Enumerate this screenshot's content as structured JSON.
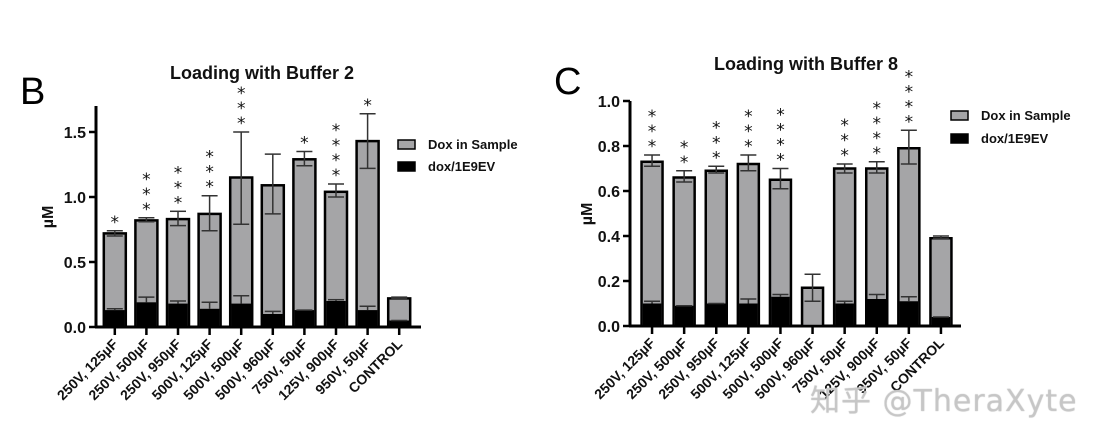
{
  "watermark": "知乎 @TheraXyte",
  "colors": {
    "gray_bar": "#a5a5a7",
    "black_bar": "#000000",
    "axis": "#000000"
  },
  "chart_data": [
    {
      "panel_letter": "B",
      "type": "bar",
      "stacked": "overlay",
      "title": "Loading with Buffer 2",
      "xlabel": "",
      "ylabel": "µM",
      "ylim": [
        0,
        1.7
      ],
      "yticks": [
        0.0,
        0.5,
        1.0,
        1.5
      ],
      "ytick_labels": [
        "0.0",
        "0.5",
        "1.0",
        "1.5"
      ],
      "legend": {
        "placement": "top-right",
        "entries": [
          "Dox in Sample",
          "dox/1E9EV"
        ]
      },
      "categories": [
        "250V, 125µF",
        "250V, 500µF",
        "250V, 950µF",
        "500V, 125µF",
        "500V, 500µF",
        "500V, 960µF",
        "750V, 50µF",
        "125V, 900µF",
        "950V, 50µF",
        "CONTROL"
      ],
      "series": [
        {
          "name": "Dox in Sample",
          "values": [
            0.72,
            0.82,
            0.83,
            0.87,
            1.15,
            1.09,
            1.29,
            1.04,
            1.43,
            0.22
          ],
          "err_low": [
            0.7,
            0.81,
            0.78,
            0.74,
            0.79,
            0.87,
            1.24,
            1.0,
            1.22,
            0.22
          ],
          "err_high": [
            0.74,
            0.84,
            0.89,
            1.01,
            1.5,
            1.33,
            1.35,
            1.1,
            1.64,
            0.23
          ]
        },
        {
          "name": "dox/1E9EV",
          "values": [
            0.13,
            0.19,
            0.18,
            0.14,
            0.18,
            0.1,
            0.13,
            0.2,
            0.13,
            0.05
          ],
          "err_high": [
            0.14,
            0.23,
            0.2,
            0.19,
            0.24,
            0.12,
            0.13,
            0.21,
            0.16,
            0.05
          ]
        }
      ],
      "significance": [
        "*",
        "***",
        "***",
        "***",
        "***",
        "",
        "*",
        "****",
        "*",
        ""
      ]
    },
    {
      "panel_letter": "C",
      "type": "bar",
      "stacked": "overlay",
      "title": "Loading with Buffer 8",
      "xlabel": "",
      "ylabel": "µM",
      "ylim": [
        0,
        1.0
      ],
      "yticks": [
        0.0,
        0.2,
        0.4,
        0.6,
        0.8,
        1.0
      ],
      "ytick_labels": [
        "0.0",
        "0.2",
        "0.4",
        "0.6",
        "0.8",
        "1.0"
      ],
      "legend": {
        "placement": "top-right",
        "entries": [
          "Dox in Sample",
          "dox/1E9EV"
        ]
      },
      "categories": [
        "250V, 125µF",
        "250V, 500µF",
        "250V, 950µF",
        "500V, 125µF",
        "500V, 500µF",
        "500V, 960µF",
        "750V, 50µF",
        "125V, 900µF",
        "950V, 50µF",
        "CONTROL"
      ],
      "series": [
        {
          "name": "Dox in Sample",
          "values": [
            0.73,
            0.66,
            0.69,
            0.72,
            0.65,
            0.17,
            0.7,
            0.7,
            0.79,
            0.39
          ],
          "err_low": [
            0.71,
            0.64,
            0.68,
            0.69,
            0.61,
            0.11,
            0.68,
            0.68,
            0.72,
            0.39
          ],
          "err_high": [
            0.76,
            0.69,
            0.71,
            0.76,
            0.7,
            0.23,
            0.72,
            0.73,
            0.87,
            0.4
          ]
        },
        {
          "name": "dox/1E9EV",
          "values": [
            0.1,
            0.09,
            0.1,
            0.1,
            0.13,
            0.0,
            0.1,
            0.12,
            0.11,
            0.04
          ],
          "err_high": [
            0.11,
            0.09,
            0.1,
            0.12,
            0.14,
            0.0,
            0.11,
            0.14,
            0.13,
            0.04
          ]
        }
      ],
      "significance": [
        "***",
        "**",
        "***",
        "***",
        "****",
        "",
        "***",
        "****",
        "****",
        ""
      ]
    }
  ]
}
